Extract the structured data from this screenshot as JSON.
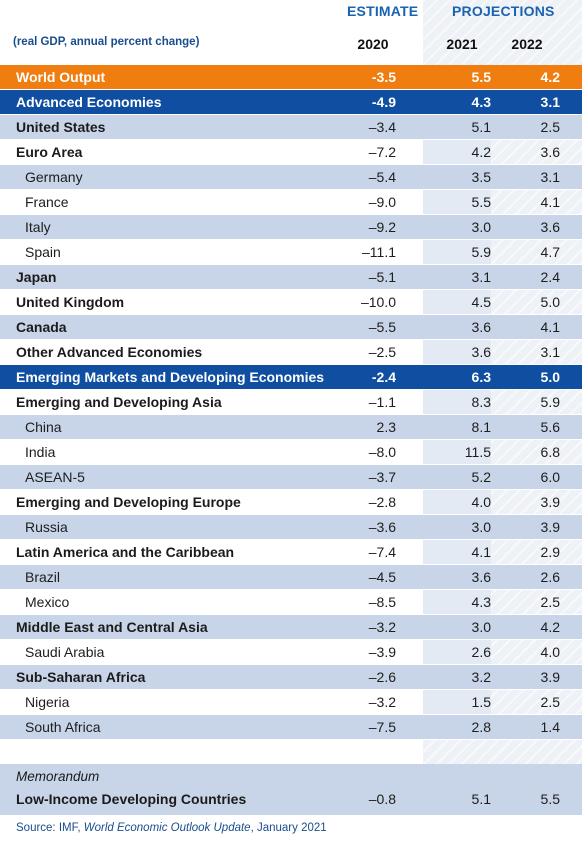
{
  "header": {
    "estimate_label": "ESTIMATE",
    "projections_label": "PROJECTIONS",
    "units_note": "(real GDP, annual percent change)",
    "years": [
      "2020",
      "2021",
      "2022"
    ]
  },
  "chart_data": {
    "type": "table",
    "columns": [
      "2020",
      "2021",
      "2022"
    ],
    "column_groups": [
      {
        "label": "ESTIMATE",
        "columns": [
          "2020"
        ]
      },
      {
        "label": "PROJECTIONS",
        "columns": [
          "2021",
          "2022"
        ]
      }
    ],
    "rows": [
      {
        "label": "World Output",
        "style": "world",
        "values": [
          "-3.5",
          "5.5",
          "4.2"
        ]
      },
      {
        "label": "Advanced Economies",
        "style": "block",
        "values": [
          "-4.9",
          "4.3",
          "3.1"
        ]
      },
      {
        "label": "United States",
        "style": "group",
        "values": [
          "–3.4",
          "5.1",
          "2.5"
        ]
      },
      {
        "label": "Euro Area",
        "style": "group",
        "values": [
          "–7.2",
          "4.2",
          "3.6"
        ]
      },
      {
        "label": "Germany",
        "style": "sub",
        "values": [
          "–5.4",
          "3.5",
          "3.1"
        ]
      },
      {
        "label": "France",
        "style": "sub",
        "values": [
          "–9.0",
          "5.5",
          "4.1"
        ]
      },
      {
        "label": "Italy",
        "style": "sub",
        "values": [
          "–9.2",
          "3.0",
          "3.6"
        ]
      },
      {
        "label": "Spain",
        "style": "sub",
        "values": [
          "–11.1",
          "5.9",
          "4.7"
        ]
      },
      {
        "label": "Japan",
        "style": "group",
        "values": [
          "–5.1",
          "3.1",
          "2.4"
        ]
      },
      {
        "label": "United Kingdom",
        "style": "group",
        "values": [
          "–10.0",
          "4.5",
          "5.0"
        ]
      },
      {
        "label": "Canada",
        "style": "group",
        "values": [
          "–5.5",
          "3.6",
          "4.1"
        ]
      },
      {
        "label": "Other Advanced Economies",
        "style": "group",
        "values": [
          "–2.5",
          "3.6",
          "3.1"
        ]
      },
      {
        "label": "Emerging Markets and Developing Economies",
        "style": "block",
        "values": [
          "-2.4",
          "6.3",
          "5.0"
        ]
      },
      {
        "label": "Emerging and Developing Asia",
        "style": "group",
        "values": [
          "–1.1",
          "8.3",
          "5.9"
        ]
      },
      {
        "label": "China",
        "style": "sub",
        "values": [
          "2.3",
          "8.1",
          "5.6"
        ]
      },
      {
        "label": "India",
        "style": "sub",
        "values": [
          "–8.0",
          "11.5",
          "6.8"
        ]
      },
      {
        "label": "ASEAN-5",
        "style": "sub",
        "values": [
          "–3.7",
          "5.2",
          "6.0"
        ]
      },
      {
        "label": "Emerging and Developing Europe",
        "style": "group",
        "values": [
          "–2.8",
          "4.0",
          "3.9"
        ]
      },
      {
        "label": "Russia",
        "style": "sub",
        "values": [
          "–3.6",
          "3.0",
          "3.9"
        ]
      },
      {
        "label": "Latin America and the Caribbean",
        "style": "group",
        "values": [
          "–7.4",
          "4.1",
          "2.9"
        ]
      },
      {
        "label": "Brazil",
        "style": "sub",
        "values": [
          "–4.5",
          "3.6",
          "2.6"
        ]
      },
      {
        "label": "Mexico",
        "style": "sub",
        "values": [
          "–8.5",
          "4.3",
          "2.5"
        ]
      },
      {
        "label": "Middle East and Central Asia",
        "style": "group",
        "values": [
          "–3.2",
          "3.0",
          "4.2"
        ]
      },
      {
        "label": "Saudi Arabia",
        "style": "sub",
        "values": [
          "–3.9",
          "2.6",
          "4.0"
        ]
      },
      {
        "label": "Sub-Saharan Africa",
        "style": "group",
        "values": [
          "–2.6",
          "3.2",
          "3.9"
        ]
      },
      {
        "label": "Nigeria",
        "style": "sub",
        "values": [
          "–3.2",
          "1.5",
          "2.5"
        ]
      },
      {
        "label": "South Africa",
        "style": "sub",
        "values": [
          "–7.5",
          "2.8",
          "1.4"
        ]
      }
    ],
    "memorandum": {
      "title": "Memorandum",
      "label": "Low-Income Developing Countries",
      "values": [
        "–0.8",
        "5.1",
        "5.5"
      ]
    }
  },
  "source": {
    "prefix": "Source: IMF, ",
    "publication": "World Economic Outlook Update",
    "suffix": ", January 2021"
  },
  "colors": {
    "world_row": "#ef7d10",
    "block_row": "#0f4ea0",
    "shaded_row": "#c8d5e8",
    "header_accent": "#1a63b0"
  }
}
